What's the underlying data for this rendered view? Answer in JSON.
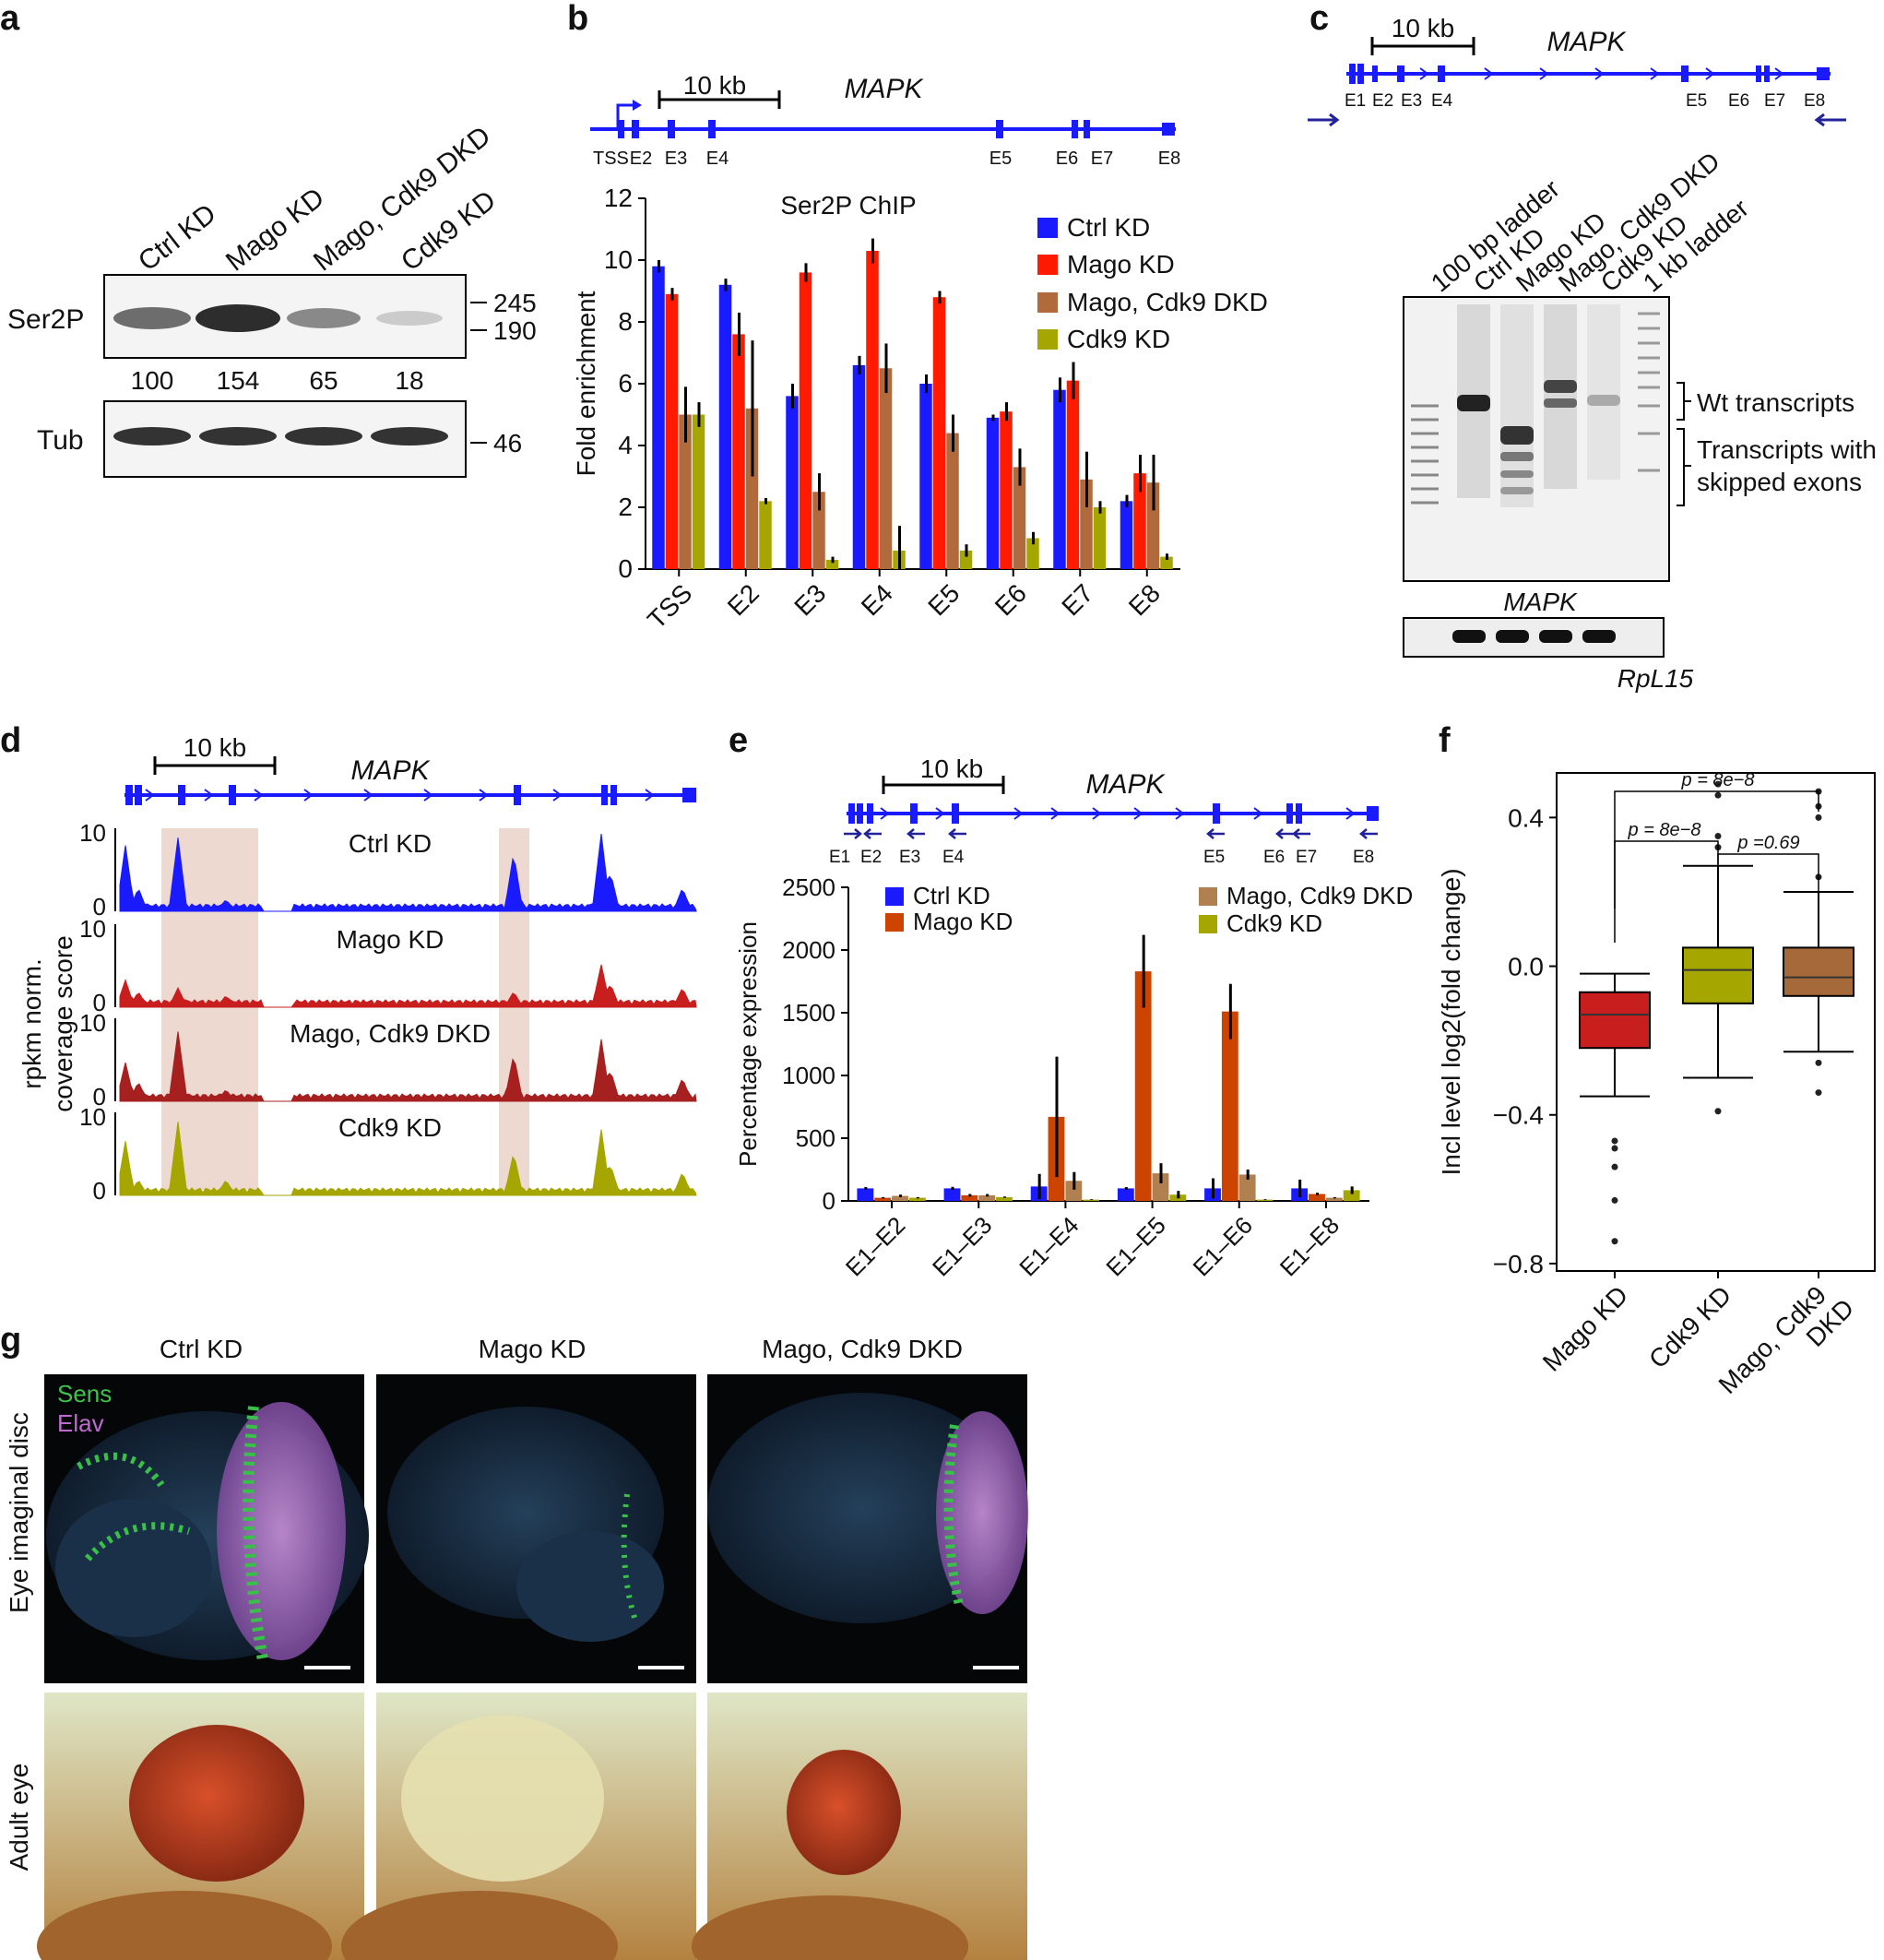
{
  "colors": {
    "ctrl": "#1a1aff",
    "mago": "#ff1a00",
    "dkd": "#b06a3b",
    "cdk9": "#a6a600",
    "gene": "#1a1aff",
    "mago_f": "#c81e1e",
    "dkd_f": "#a62020",
    "e_mago": "#cc4400",
    "e_dkd": "#b08050",
    "box_mago": "#c81e1e",
    "box_cdk9": "#a6a600",
    "box_dkd": "#a66a3a",
    "shade": "#e8d0c4"
  },
  "panel_labels": [
    "a",
    "b",
    "c",
    "d",
    "e",
    "f",
    "g"
  ],
  "gene_model": {
    "name": "MAPK",
    "scale_label": "10 kb",
    "tss_label": "TSS",
    "exons": [
      "E1",
      "E2",
      "E3",
      "E4",
      "E5",
      "E6",
      "E7",
      "E8"
    ]
  },
  "panel_a": {
    "lanes": [
      "Ctrl KD",
      "Mago KD",
      "Mago, Cdk9 DKD",
      "Cdk9 KD"
    ],
    "ser2p_label": "Ser2P",
    "tub_label": "Tub",
    "quant": [
      "100",
      "154",
      "65",
      "18"
    ],
    "markers_top": [
      "245",
      "190"
    ],
    "markers_bottom": [
      "46"
    ]
  },
  "panel_c": {
    "lanes": [
      "100 bp ladder",
      "Ctrl KD",
      "Mago KD",
      "Mago, Cdk9 DKD",
      "Cdk9 KD",
      "1 kb ladder"
    ],
    "gel_label": "MAPK",
    "control_label": "RpL15",
    "bracket_wt": "Wt transcripts",
    "bracket_skip_line1": "Transcripts with",
    "bracket_skip_line2": "skipped exons"
  },
  "panel_d": {
    "ylabel_line1": "rpkm norm.",
    "ylabel_line2": "coverage score",
    "tracks": [
      "Ctrl KD",
      "Mago KD",
      "Mago, Cdk9 DKD",
      "Cdk9 KD"
    ],
    "y_ticks": [
      "0",
      "10"
    ]
  },
  "panel_g": {
    "columns": [
      "Ctrl KD",
      "Mago KD",
      "Mago, Cdk9 DKD"
    ],
    "row_labels": [
      "Eye imaginal disc",
      "Adult eye"
    ],
    "stain_labels": [
      "Sens",
      "Elav"
    ]
  },
  "chart_data": [
    {
      "panel": "b",
      "type": "bar",
      "title": "Ser2P ChIP",
      "xlabel": "",
      "ylabel": "Fold enrichment",
      "ylim": [
        0,
        12
      ],
      "yticks": [
        0,
        2,
        4,
        6,
        8,
        10,
        12
      ],
      "categories": [
        "TSS",
        "E2",
        "E3",
        "E4",
        "E5",
        "E6",
        "E7",
        "E8"
      ],
      "legend_position": "top-right",
      "series": [
        {
          "name": "Ctrl KD",
          "values": [
            9.8,
            9.2,
            5.6,
            6.6,
            6.0,
            4.9,
            5.8,
            2.2
          ],
          "errors": [
            0.2,
            0.2,
            0.4,
            0.3,
            0.3,
            0.1,
            0.4,
            0.2
          ]
        },
        {
          "name": "Mago KD",
          "values": [
            8.9,
            7.6,
            9.6,
            10.3,
            8.8,
            5.1,
            6.1,
            3.1
          ],
          "errors": [
            0.2,
            0.7,
            0.3,
            0.4,
            0.2,
            0.3,
            0.6,
            0.6
          ]
        },
        {
          "name": "Mago, Cdk9 DKD",
          "values": [
            5.0,
            5.2,
            2.5,
            6.5,
            4.4,
            3.3,
            2.9,
            2.8
          ],
          "errors": [
            0.9,
            2.2,
            0.6,
            0.8,
            0.6,
            0.6,
            0.9,
            0.9
          ]
        },
        {
          "name": "Cdk9 KD",
          "values": [
            5.0,
            2.2,
            0.3,
            0.6,
            0.6,
            1.0,
            2.0,
            0.4
          ],
          "errors": [
            0.4,
            0.1,
            0.1,
            0.8,
            0.2,
            0.2,
            0.2,
            0.1
          ]
        }
      ]
    },
    {
      "panel": "e",
      "type": "bar",
      "title": "",
      "xlabel": "",
      "ylabel": "Percentage expression",
      "ylim": [
        0,
        2500
      ],
      "yticks": [
        0,
        500,
        1000,
        1500,
        2000,
        2500
      ],
      "categories": [
        "E1–E2",
        "E1–E3",
        "E1–E4",
        "E1–E5",
        "E1–E6",
        "E1–E8"
      ],
      "legend_position": "top",
      "series": [
        {
          "name": "Ctrl KD",
          "values": [
            100,
            100,
            115,
            100,
            100,
            100
          ],
          "errors": [
            10,
            12,
            100,
            10,
            80,
            70
          ]
        },
        {
          "name": "Mago KD",
          "values": [
            25,
            45,
            670,
            1830,
            1510,
            55
          ],
          "errors": [
            5,
            10,
            480,
            290,
            220,
            10
          ]
        },
        {
          "name": "Mago, Cdk9 DKD",
          "values": [
            40,
            45,
            160,
            220,
            210,
            25
          ],
          "errors": [
            10,
            10,
            70,
            80,
            40,
            5
          ]
        },
        {
          "name": "Cdk9 KD",
          "values": [
            25,
            30,
            10,
            50,
            10,
            85
          ],
          "errors": [
            5,
            5,
            3,
            30,
            3,
            30
          ]
        }
      ]
    },
    {
      "panel": "f",
      "type": "box",
      "title": "",
      "xlabel": "",
      "ylabel": "Incl level log2(fold change)",
      "ylim": [
        -0.82,
        0.52
      ],
      "yticks": [
        -0.8,
        -0.4,
        0.0,
        0.4
      ],
      "ytick_labels": [
        "−0.8",
        "−0.4",
        "0.0",
        "0.4"
      ],
      "groups": [
        {
          "name": "Mago KD",
          "whisker_low": -0.35,
          "q1": -0.22,
          "median": -0.13,
          "q3": -0.07,
          "whisker_high": -0.02,
          "outliers": [
            -0.47,
            -0.49,
            -0.54,
            -0.63,
            -0.74
          ]
        },
        {
          "name": "Cdk9 KD",
          "whisker_low": -0.3,
          "q1": -0.1,
          "median": -0.01,
          "q3": 0.05,
          "whisker_high": 0.27,
          "outliers": [
            -0.39,
            0.32,
            0.35,
            0.46,
            0.49
          ]
        },
        {
          "name": "Mago, Cdk9 DKD",
          "name_line1": "Mago, Cdk9",
          "name_line2": "DKD",
          "whisker_low": -0.23,
          "q1": -0.08,
          "median": -0.03,
          "q3": 0.05,
          "whisker_high": 0.2,
          "outliers": [
            -0.26,
            -0.34,
            0.24,
            0.4,
            0.43,
            0.47
          ]
        }
      ],
      "pvalues": [
        "p = 8e−8",
        "p = 8e−8",
        "p =0.69"
      ]
    }
  ]
}
